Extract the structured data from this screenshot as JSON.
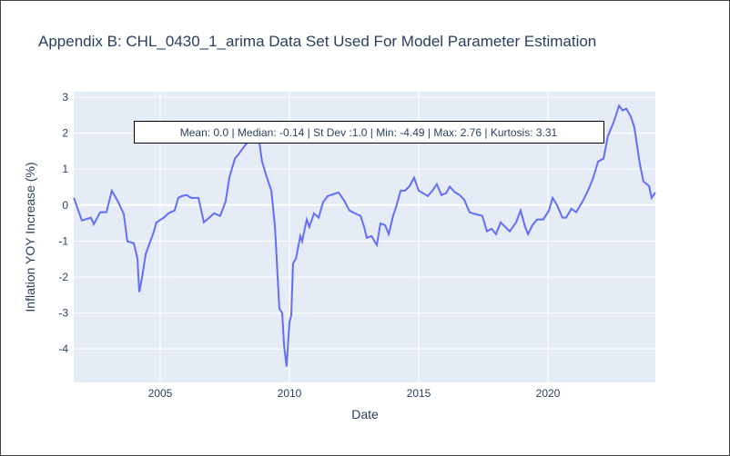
{
  "chart_data": {
    "type": "line",
    "title": "Appendix B: CHL_0430_1_arima Data Set Used For Model Parameter Estimation",
    "x_label": "Date",
    "y_label": "Inflation YOY Increase (%)",
    "annotation": "Mean: 0.0 | Median: -0.14 | St Dev :1.0 | Min: -4.49 | Max: 2.76 | Kurtosis: 3.31",
    "color": "#636efa",
    "grid": true,
    "xlim": [
      2001.655,
      2024.155
    ],
    "xticks": [
      2005,
      2010,
      2015,
      2020
    ],
    "ylim": [
      -4.93,
      3.15
    ],
    "yticks": [
      -4,
      -3,
      -2,
      -1,
      0,
      1,
      2,
      3
    ],
    "x": [
      2001.66,
      2001.97,
      2002.32,
      2002.43,
      2002.68,
      2002.92,
      2003.13,
      2003.38,
      2003.59,
      2003.73,
      2003.98,
      2004.12,
      2004.19,
      2004.3,
      2004.44,
      2004.72,
      2004.86,
      2005.14,
      2005.32,
      2005.56,
      2005.7,
      2005.84,
      2006.02,
      2006.2,
      2006.48,
      2006.69,
      2006.9,
      2007.08,
      2007.32,
      2007.53,
      2007.68,
      2007.89,
      2008.03,
      2008.24,
      2008.45,
      2008.66,
      2008.84,
      2008.94,
      2009.12,
      2009.3,
      2009.44,
      2009.61,
      2009.72,
      2009.79,
      2009.89,
      2010.0,
      2010.07,
      2010.14,
      2010.25,
      2010.42,
      2010.49,
      2010.67,
      2010.77,
      2010.95,
      2011.13,
      2011.3,
      2011.48,
      2011.69,
      2011.9,
      2012.11,
      2012.32,
      2012.53,
      2012.75,
      2012.89,
      2012.99,
      2013.17,
      2013.38,
      2013.52,
      2013.7,
      2013.84,
      2014.01,
      2014.15,
      2014.3,
      2014.47,
      2014.65,
      2014.82,
      2015.0,
      2015.17,
      2015.35,
      2015.53,
      2015.7,
      2015.88,
      2016.06,
      2016.2,
      2016.41,
      2016.58,
      2016.76,
      2016.97,
      2017.18,
      2017.46,
      2017.64,
      2017.82,
      2017.99,
      2018.17,
      2018.35,
      2018.52,
      2018.77,
      2018.94,
      2019.12,
      2019.23,
      2019.4,
      2019.58,
      2019.82,
      2020.04,
      2020.18,
      2020.35,
      2020.56,
      2020.7,
      2020.91,
      2021.09,
      2021.34,
      2021.58,
      2021.76,
      2021.94,
      2022.15,
      2022.32,
      2022.54,
      2022.75,
      2022.89,
      2023.03,
      2023.2,
      2023.34,
      2023.55,
      2023.69,
      2023.91,
      2024.01,
      2024.15
    ],
    "values": [
      0.2,
      -0.43,
      -0.35,
      -0.53,
      -0.2,
      -0.2,
      0.4,
      0.08,
      -0.25,
      -1.01,
      -1.06,
      -1.49,
      -2.42,
      -2.0,
      -1.36,
      -0.81,
      -0.48,
      -0.35,
      -0.23,
      -0.15,
      0.2,
      0.25,
      0.28,
      0.2,
      0.2,
      -0.48,
      -0.35,
      -0.23,
      -0.3,
      0.1,
      0.78,
      1.29,
      1.41,
      1.62,
      1.79,
      1.92,
      1.72,
      1.21,
      0.78,
      0.4,
      -0.61,
      -2.88,
      -3.0,
      -3.89,
      -4.49,
      -3.26,
      -3.06,
      -1.62,
      -1.49,
      -0.86,
      -1.01,
      -0.4,
      -0.61,
      -0.23,
      -0.35,
      0.08,
      0.25,
      0.3,
      0.35,
      0.13,
      -0.15,
      -0.23,
      -0.3,
      -0.61,
      -0.91,
      -0.86,
      -1.11,
      -0.51,
      -0.56,
      -0.81,
      -0.3,
      0,
      0.4,
      0.4,
      0.53,
      0.76,
      0.4,
      0.33,
      0.25,
      0.4,
      0.58,
      0.28,
      0.33,
      0.51,
      0.35,
      0.28,
      0.15,
      -0.2,
      -0.25,
      -0.3,
      -0.73,
      -0.66,
      -0.81,
      -0.48,
      -0.61,
      -0.73,
      -0.48,
      -0.15,
      -0.61,
      -0.81,
      -0.56,
      -0.4,
      -0.4,
      -0.15,
      0.2,
      0,
      -0.35,
      -0.35,
      -0.1,
      -0.2,
      0.1,
      0.45,
      0.78,
      1.21,
      1.29,
      1.92,
      2.3,
      2.76,
      2.63,
      2.68,
      2.47,
      2.17,
      1.16,
      0.66,
      0.53,
      0.2,
      0.35
    ]
  }
}
